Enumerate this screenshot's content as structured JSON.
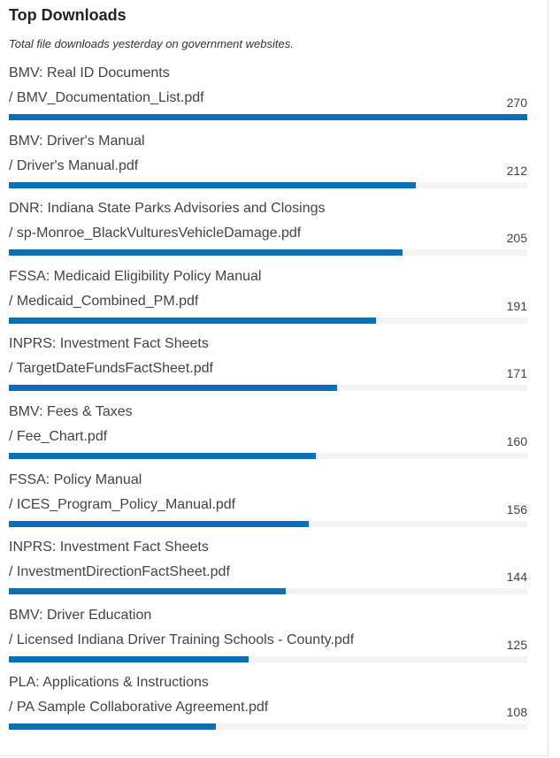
{
  "header": {
    "title": "Top Downloads",
    "subtitle": "Total file downloads yesterday on government websites."
  },
  "colors": {
    "bar": "#0a6fb5",
    "track": "#f3f3f3"
  },
  "chart_data": {
    "type": "bar",
    "orientation": "horizontal",
    "title": "Top Downloads",
    "subtitle": "Total file downloads yesterday on government websites.",
    "xlim": [
      0,
      270
    ],
    "items": [
      {
        "site": "BMV: Real ID Documents",
        "file": "/ BMV_Documentation_List.pdf",
        "value": 270
      },
      {
        "site": "BMV: Driver's Manual",
        "file": "/ Driver's Manual.pdf",
        "value": 212
      },
      {
        "site": "DNR: Indiana State Parks Advisories and Closings",
        "file": "/ sp-Monroe_BlackVulturesVehicleDamage.pdf",
        "value": 205
      },
      {
        "site": "FSSA: Medicaid Eligibility Policy Manual",
        "file": "/ Medicaid_Combined_PM.pdf",
        "value": 191
      },
      {
        "site": "INPRS: Investment Fact Sheets",
        "file": "/ TargetDateFundsFactSheet.pdf",
        "value": 171
      },
      {
        "site": "BMV: Fees & Taxes",
        "file": "/ Fee_Chart.pdf",
        "value": 160
      },
      {
        "site": "FSSA: Policy Manual",
        "file": "/ ICES_Program_Policy_Manual.pdf",
        "value": 156
      },
      {
        "site": "INPRS: Investment Fact Sheets",
        "file": "/ InvestmentDirectionFactSheet.pdf",
        "value": 144
      },
      {
        "site": "BMV: Driver Education",
        "file": "/ Licensed Indiana Driver Training Schools - County.pdf",
        "value": 125
      },
      {
        "site": "PLA: Applications & Instructions",
        "file": "/ PA Sample Collaborative Agreement.pdf",
        "value": 108
      }
    ]
  }
}
